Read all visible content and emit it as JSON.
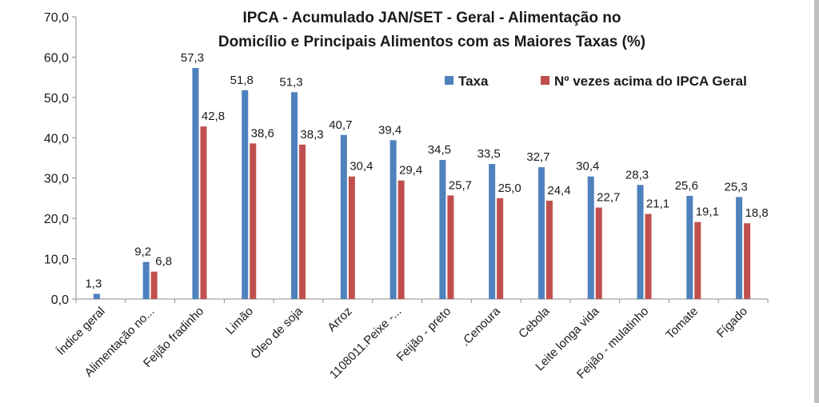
{
  "chart_data": {
    "type": "bar",
    "title_line1": "IPCA - Acumulado JAN/SET - Geral - Alimentação no",
    "title_line2": "Domicílio e Principais Alimentos com as Maiores Taxas (%)",
    "categories": [
      "Índice geral",
      "Alimentação no...",
      "Feijão fradinho",
      "Limão",
      "Óleo de soja",
      "Arroz",
      "1108011.Peixe -...",
      "Feijão - preto",
      ".Cenoura",
      "Cebola",
      "Leite longa vida",
      "Feijão - mulatinho",
      "Tomate",
      "Fígado"
    ],
    "series": [
      {
        "name": "Taxa",
        "color": "#4F81BD",
        "values": [
          1.3,
          9.2,
          57.3,
          51.8,
          51.3,
          40.7,
          39.4,
          34.5,
          33.5,
          32.7,
          30.4,
          28.3,
          25.6,
          25.3
        ],
        "labels": [
          "1,3",
          "9,2",
          "57,3",
          "51,8",
          "51,3",
          "40,7",
          "39,4",
          "34,5",
          "33,5",
          "32,7",
          "30,4",
          "28,3",
          "25,6",
          "25,3"
        ]
      },
      {
        "name": "Nº vezes acima do IPCA Geral",
        "color": "#C0504D",
        "values": [
          null,
          6.8,
          42.8,
          38.6,
          38.3,
          30.4,
          29.4,
          25.7,
          25.0,
          24.4,
          22.7,
          21.1,
          19.1,
          18.8
        ],
        "labels": [
          "",
          "6,8",
          "42,8",
          "38,6",
          "38,3",
          "30,4",
          "29,4",
          "25,7",
          "25,0",
          "24,4",
          "22,7",
          "21,1",
          "19,1",
          "18,8"
        ]
      }
    ],
    "yticks": [
      "0,0",
      "10,0",
      "20,0",
      "30,0",
      "40,0",
      "50,0",
      "60,0",
      "70,0"
    ],
    "ylim": [
      0,
      70
    ],
    "grid": false,
    "legend_position": "top-right"
  }
}
